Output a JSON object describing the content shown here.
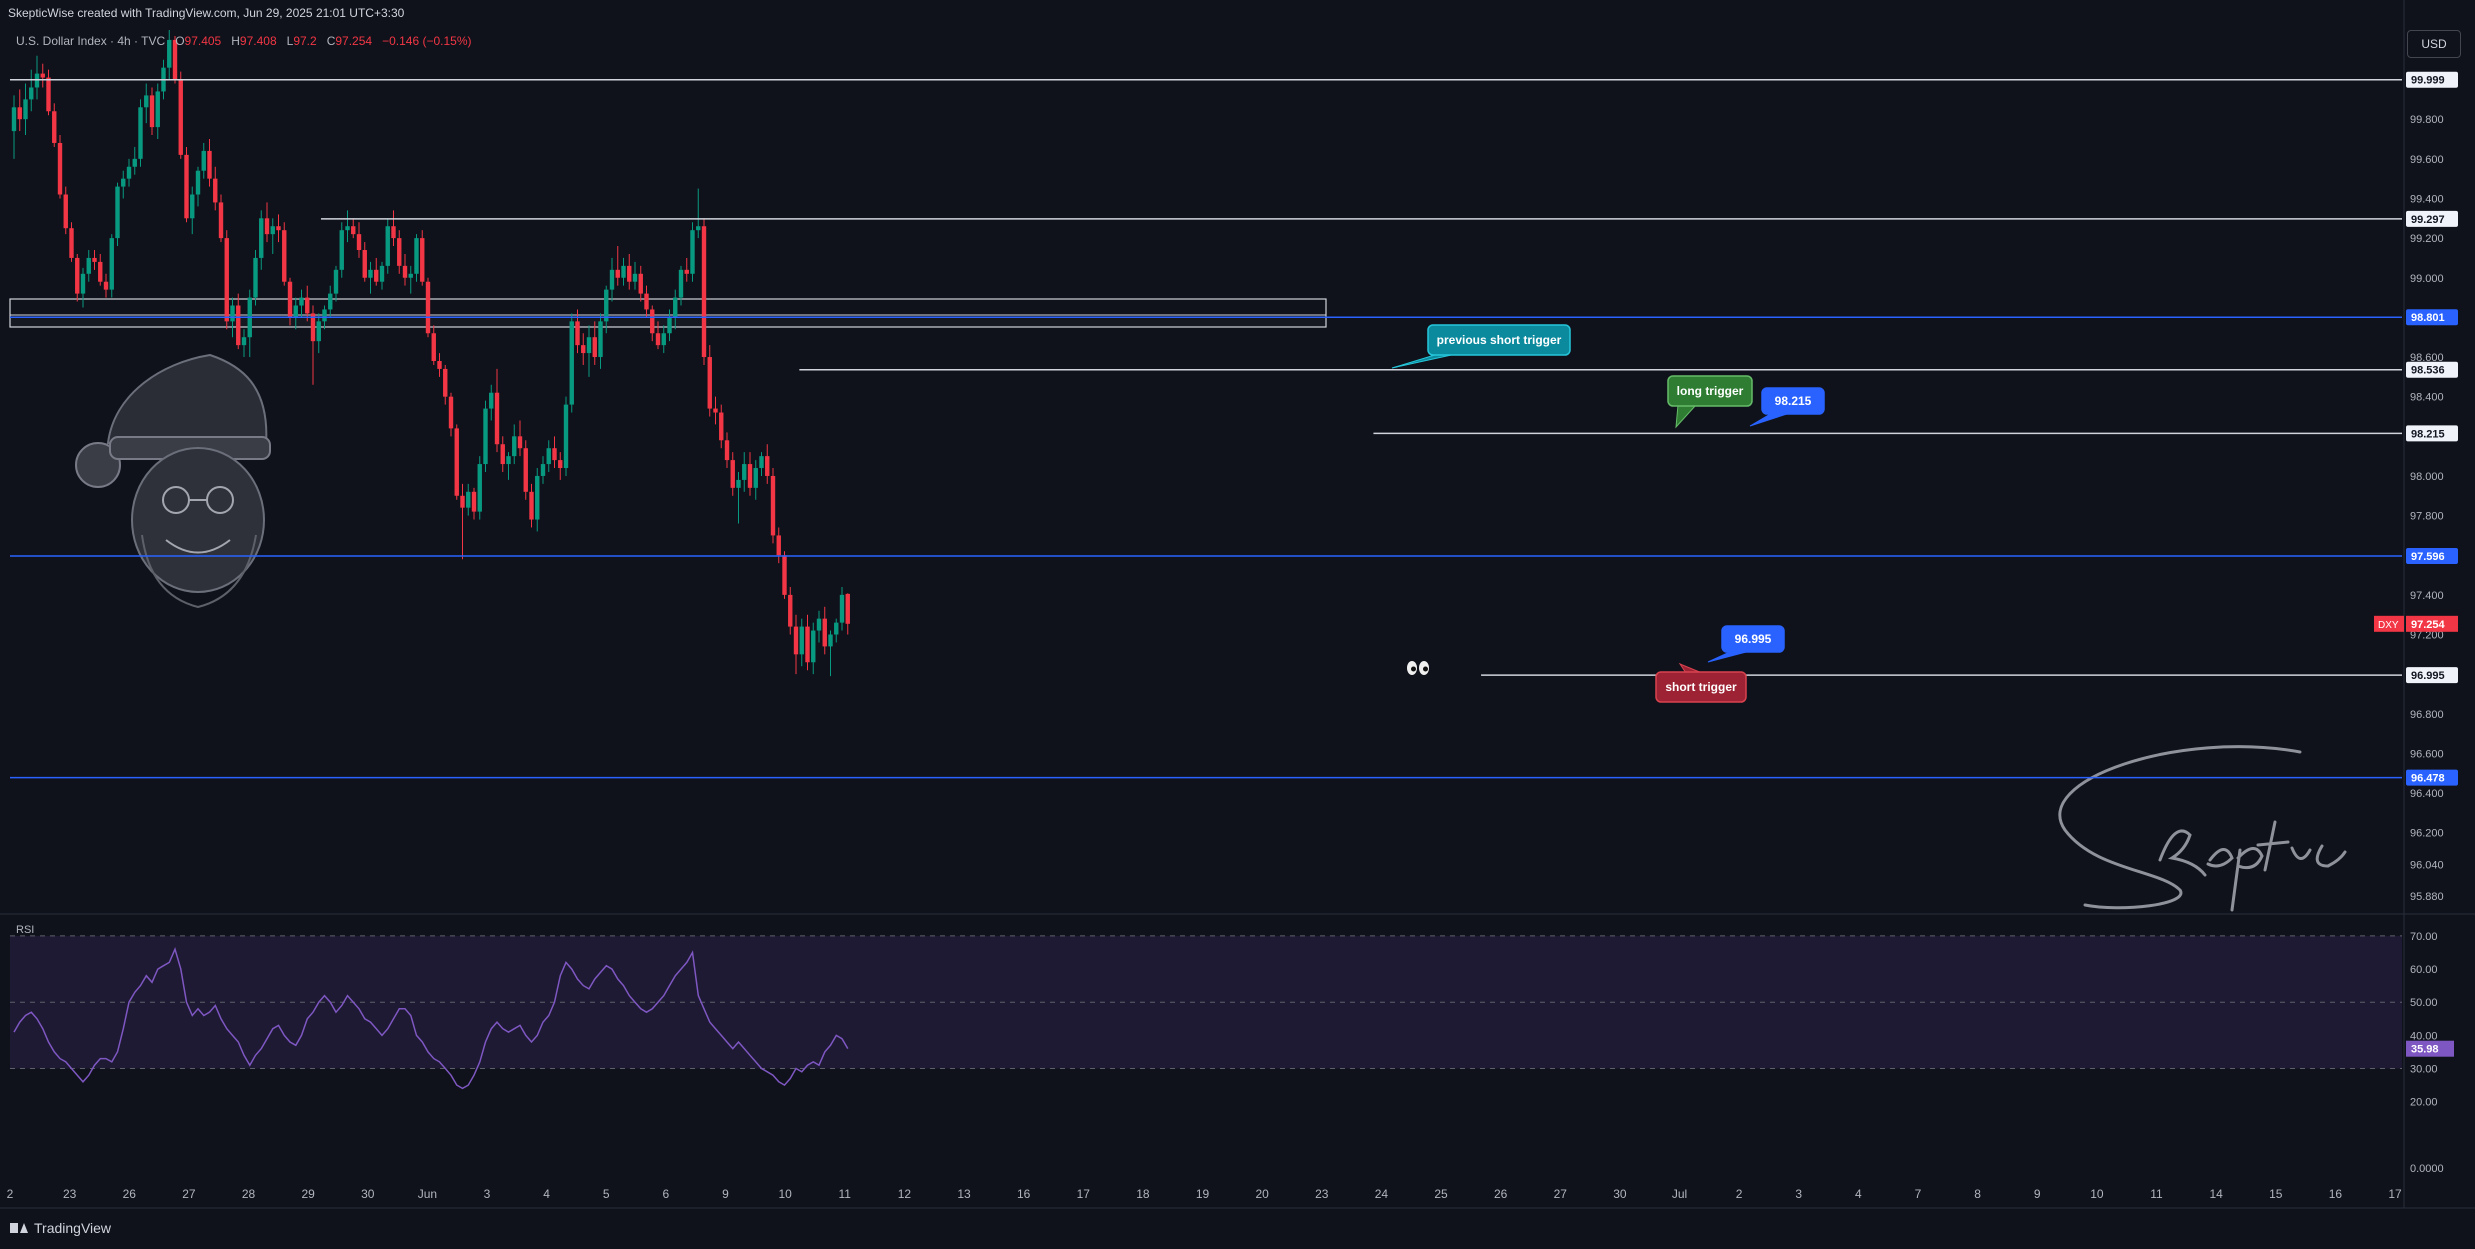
{
  "header": {
    "attribution": "SkepticWise created with TradingView.com, Jun 29, 2025 21:01 UTC+3:30"
  },
  "legend": {
    "symbol": "U.S. Dollar Index · 4h · TVC",
    "o_label": "O",
    "o": "97.405",
    "h_label": "H",
    "h": "97.408",
    "l_label": "L",
    "l": "97.2",
    "c_label": "C",
    "c": "97.254",
    "change": "−0.146 (−0.15%)"
  },
  "currency_button": "USD",
  "footer": {
    "brand": "TradingView"
  },
  "colors": {
    "background": "#0f121a",
    "up": "#089981",
    "down": "#f23645",
    "blue_line": "#2962ff",
    "white_line": "#d1d4dc",
    "rsi": "#7e57c2",
    "rsi_band": "#1e1a33"
  },
  "chart_data": {
    "type": "candlestick",
    "price_axis": {
      "ticks": [
        "99.800",
        "99.600",
        "99.400",
        "99.200",
        "99.000",
        "98.600",
        "98.400",
        "98.000",
        "97.800",
        "97.400",
        "97.200",
        "96.800",
        "96.600",
        "96.400",
        "96.200",
        "96.040",
        "95.880"
      ],
      "range": [
        95.8,
        100.25
      ]
    },
    "levels": [
      {
        "value": 99.999,
        "label": "99.999",
        "color": "white",
        "from": 0
      },
      {
        "value": 99.297,
        "label": "99.297",
        "color": "white",
        "from": 0.13
      },
      {
        "value": 98.801,
        "label": "98.801",
        "color": "blue",
        "from": 0
      },
      {
        "value": 98.536,
        "label": "98.536",
        "color": "white",
        "from": 0.33
      },
      {
        "value": 98.215,
        "label": "98.215",
        "color": "white",
        "from": 0.57
      },
      {
        "value": 97.596,
        "label": "97.596",
        "color": "blue",
        "from": 0
      },
      {
        "value": 96.995,
        "label": "96.995",
        "color": "white",
        "from": 0.615
      },
      {
        "value": 96.478,
        "label": "96.478",
        "color": "blue",
        "from": 0
      }
    ],
    "current_price": {
      "symbol": "DXY",
      "value": "97.254"
    },
    "annotations": [
      {
        "text": "previous short trigger",
        "style": "teal"
      },
      {
        "text": "long trigger",
        "style": "green"
      },
      {
        "text": "98.215",
        "style": "blue"
      },
      {
        "text": "96.995",
        "style": "blue"
      },
      {
        "text": "short trigger",
        "style": "red"
      }
    ],
    "signature": "Skeptic",
    "time_axis": [
      "2",
      "23",
      "26",
      "27",
      "28",
      "29",
      "30",
      "Jun",
      "3",
      "4",
      "5",
      "6",
      "9",
      "10",
      "11",
      "12",
      "13",
      "16",
      "17",
      "18",
      "19",
      "20",
      "23",
      "24",
      "25",
      "26",
      "27",
      "30",
      "Jul",
      "2",
      "3",
      "4",
      "7",
      "8",
      "9",
      "10",
      "11",
      "14",
      "15",
      "16",
      "17"
    ],
    "candles": [
      [
        99.74,
        99.92,
        99.6,
        99.86
      ],
      [
        99.86,
        99.95,
        99.74,
        99.8
      ],
      [
        99.8,
        99.98,
        99.72,
        99.9
      ],
      [
        99.9,
        100.05,
        99.84,
        99.96
      ],
      [
        99.96,
        100.12,
        99.9,
        100.03
      ],
      [
        100.03,
        100.08,
        99.96,
        100.01
      ],
      [
        100.01,
        100.05,
        99.82,
        99.84
      ],
      [
        99.84,
        99.88,
        99.66,
        99.68
      ],
      [
        99.68,
        99.72,
        99.4,
        99.42
      ],
      [
        99.42,
        99.46,
        99.22,
        99.25
      ],
      [
        99.25,
        99.28,
        99.08,
        99.1
      ],
      [
        99.1,
        99.12,
        98.88,
        98.92
      ],
      [
        98.92,
        99.05,
        98.85,
        99.02
      ],
      [
        99.02,
        99.14,
        98.98,
        99.1
      ],
      [
        99.1,
        99.14,
        99.04,
        99.08
      ],
      [
        99.08,
        99.12,
        98.96,
        98.98
      ],
      [
        98.98,
        99.02,
        98.9,
        98.94
      ],
      [
        98.94,
        99.22,
        98.9,
        99.2
      ],
      [
        99.2,
        99.48,
        99.16,
        99.46
      ],
      [
        99.46,
        99.54,
        99.4,
        99.5
      ],
      [
        99.5,
        99.6,
        99.46,
        99.56
      ],
      [
        99.56,
        99.66,
        99.52,
        99.6
      ],
      [
        99.6,
        99.9,
        99.56,
        99.86
      ],
      [
        99.86,
        99.98,
        99.78,
        99.92
      ],
      [
        99.92,
        99.96,
        99.72,
        99.76
      ],
      [
        99.76,
        99.98,
        99.7,
        99.94
      ],
      [
        99.94,
        100.1,
        99.9,
        100.06
      ],
      [
        100.06,
        100.25,
        100.0,
        100.2
      ],
      [
        100.2,
        100.22,
        99.98,
        100.0
      ],
      [
        100.0,
        100.04,
        99.6,
        99.62
      ],
      [
        99.62,
        99.66,
        99.28,
        99.3
      ],
      [
        99.3,
        99.46,
        99.22,
        99.42
      ],
      [
        99.42,
        99.56,
        99.36,
        99.54
      ],
      [
        99.54,
        99.68,
        99.5,
        99.64
      ],
      [
        99.64,
        99.7,
        99.46,
        99.5
      ],
      [
        99.5,
        99.56,
        99.34,
        99.38
      ],
      [
        99.38,
        99.42,
        99.18,
        99.2
      ],
      [
        99.2,
        99.24,
        98.74,
        98.78
      ],
      [
        98.78,
        98.9,
        98.7,
        98.86
      ],
      [
        98.86,
        98.92,
        98.64,
        98.66
      ],
      [
        98.66,
        98.74,
        98.6,
        98.7
      ],
      [
        98.7,
        98.94,
        98.6,
        98.9
      ],
      [
        98.9,
        99.14,
        98.86,
        99.1
      ],
      [
        99.1,
        99.34,
        99.04,
        99.3
      ],
      [
        99.3,
        99.38,
        99.18,
        99.22
      ],
      [
        99.22,
        99.3,
        99.12,
        99.26
      ],
      [
        99.26,
        99.32,
        99.18,
        99.24
      ],
      [
        99.24,
        99.28,
        98.96,
        98.98
      ],
      [
        98.98,
        99.0,
        98.76,
        98.8
      ],
      [
        98.8,
        98.9,
        98.74,
        98.86
      ],
      [
        98.86,
        98.94,
        98.8,
        98.9
      ],
      [
        98.9,
        98.96,
        98.78,
        98.82
      ],
      [
        98.82,
        98.86,
        98.46,
        98.68
      ],
      [
        98.68,
        98.82,
        98.62,
        98.78
      ],
      [
        98.78,
        98.86,
        98.74,
        98.84
      ],
      [
        98.84,
        98.96,
        98.8,
        98.92
      ],
      [
        98.92,
        99.06,
        98.88,
        99.04
      ],
      [
        99.04,
        99.28,
        99.0,
        99.24
      ],
      [
        99.24,
        99.34,
        99.18,
        99.26
      ],
      [
        99.26,
        99.3,
        99.2,
        99.22
      ],
      [
        99.22,
        99.28,
        99.1,
        99.14
      ],
      [
        99.14,
        99.18,
        98.98,
        99.0
      ],
      [
        99.0,
        99.08,
        98.92,
        99.04
      ],
      [
        99.04,
        99.1,
        98.96,
        98.98
      ],
      [
        98.98,
        99.08,
        98.94,
        99.06
      ],
      [
        99.06,
        99.3,
        99.02,
        99.26
      ],
      [
        99.26,
        99.34,
        99.16,
        99.2
      ],
      [
        99.2,
        99.24,
        99.02,
        99.06
      ],
      [
        99.06,
        99.12,
        98.96,
        99.0
      ],
      [
        99.0,
        99.06,
        98.92,
        99.02
      ],
      [
        99.02,
        99.22,
        98.98,
        99.2
      ],
      [
        99.2,
        99.24,
        98.96,
        98.98
      ],
      [
        98.98,
        99.0,
        98.7,
        98.72
      ],
      [
        98.72,
        98.76,
        98.56,
        98.58
      ],
      [
        98.58,
        98.62,
        98.5,
        98.54
      ],
      [
        98.54,
        98.56,
        98.36,
        98.4
      ],
      [
        98.4,
        98.42,
        98.2,
        98.24
      ],
      [
        98.24,
        98.26,
        97.88,
        97.9
      ],
      [
        97.9,
        97.96,
        97.58,
        97.84
      ],
      [
        97.84,
        97.96,
        97.8,
        97.92
      ],
      [
        97.92,
        97.94,
        97.78,
        97.82
      ],
      [
        97.82,
        98.1,
        97.78,
        98.06
      ],
      [
        98.06,
        98.38,
        98.02,
        98.34
      ],
      [
        98.34,
        98.46,
        98.28,
        98.42
      ],
      [
        98.42,
        98.54,
        98.12,
        98.16
      ],
      [
        98.16,
        98.2,
        98.02,
        98.06
      ],
      [
        98.06,
        98.12,
        97.98,
        98.1
      ],
      [
        98.1,
        98.26,
        98.06,
        98.2
      ],
      [
        98.2,
        98.28,
        98.1,
        98.14
      ],
      [
        98.14,
        98.18,
        97.88,
        97.92
      ],
      [
        97.92,
        97.96,
        97.74,
        97.78
      ],
      [
        97.78,
        98.04,
        97.72,
        98.0
      ],
      [
        98.0,
        98.1,
        97.96,
        98.06
      ],
      [
        98.06,
        98.18,
        98.02,
        98.14
      ],
      [
        98.14,
        98.2,
        98.04,
        98.08
      ],
      [
        98.08,
        98.12,
        97.98,
        98.04
      ],
      [
        98.04,
        98.4,
        98.0,
        98.36
      ],
      [
        98.36,
        98.82,
        98.32,
        98.78
      ],
      [
        98.78,
        98.84,
        98.62,
        98.66
      ],
      [
        98.66,
        98.72,
        98.56,
        98.62
      ],
      [
        98.62,
        98.76,
        98.5,
        98.7
      ],
      [
        98.7,
        98.78,
        98.56,
        98.6
      ],
      [
        98.6,
        98.82,
        98.54,
        98.78
      ],
      [
        98.78,
        98.96,
        98.72,
        98.94
      ],
      [
        98.94,
        99.1,
        98.88,
        99.04
      ],
      [
        99.04,
        99.16,
        98.96,
        99.0
      ],
      [
        99.0,
        99.1,
        98.96,
        99.06
      ],
      [
        99.06,
        99.12,
        98.94,
        98.98
      ],
      [
        98.98,
        99.08,
        98.94,
        99.02
      ],
      [
        99.02,
        99.06,
        98.88,
        98.92
      ],
      [
        98.92,
        98.96,
        98.8,
        98.84
      ],
      [
        98.84,
        98.86,
        98.68,
        98.72
      ],
      [
        98.72,
        98.78,
        98.64,
        98.66
      ],
      [
        98.66,
        98.76,
        98.62,
        98.72
      ],
      [
        98.72,
        98.84,
        98.68,
        98.8
      ],
      [
        98.8,
        98.94,
        98.74,
        98.9
      ],
      [
        98.9,
        99.06,
        98.86,
        99.04
      ],
      [
        99.04,
        99.1,
        98.98,
        99.02
      ],
      [
        99.02,
        99.28,
        98.98,
        99.24
      ],
      [
        99.24,
        99.45,
        99.2,
        99.26
      ],
      [
        99.26,
        99.3,
        98.56,
        98.6
      ],
      [
        98.6,
        98.66,
        98.3,
        98.34
      ],
      [
        98.34,
        98.4,
        98.26,
        98.32
      ],
      [
        98.32,
        98.36,
        98.14,
        98.18
      ],
      [
        98.18,
        98.22,
        98.04,
        98.08
      ],
      [
        98.08,
        98.12,
        97.9,
        97.94
      ],
      [
        97.94,
        98.02,
        97.76,
        97.98
      ],
      [
        97.98,
        98.12,
        97.92,
        98.06
      ],
      [
        98.06,
        98.12,
        97.9,
        97.94
      ],
      [
        97.94,
        98.08,
        97.88,
        98.04
      ],
      [
        98.04,
        98.12,
        98.0,
        98.1
      ],
      [
        98.1,
        98.16,
        97.96,
        98.0
      ],
      [
        98.0,
        98.04,
        97.66,
        97.7
      ],
      [
        97.7,
        97.74,
        97.56,
        97.6
      ],
      [
        97.6,
        97.62,
        97.38,
        97.4
      ],
      [
        97.4,
        97.44,
        97.2,
        97.24
      ],
      [
        97.24,
        97.3,
        97.0,
        97.1
      ],
      [
        97.1,
        97.28,
        97.04,
        97.24
      ],
      [
        97.24,
        97.3,
        97.02,
        97.06
      ],
      [
        97.06,
        97.26,
        97.0,
        97.22
      ],
      [
        97.22,
        97.32,
        97.16,
        97.28
      ],
      [
        97.28,
        97.34,
        97.1,
        97.14
      ],
      [
        97.14,
        97.22,
        96.99,
        97.2
      ],
      [
        97.2,
        97.28,
        97.16,
        97.26
      ],
      [
        97.26,
        97.44,
        97.22,
        97.4
      ],
      [
        97.405,
        97.408,
        97.2,
        97.254
      ]
    ],
    "rsi": {
      "label": "RSI",
      "ticks": [
        "70.00",
        "60.00",
        "50.00",
        "40.00",
        "30.00",
        "20.00",
        "0.0000"
      ],
      "range": [
        0,
        76
      ],
      "band": [
        30,
        70
      ],
      "last": "35.98",
      "values": [
        41,
        44,
        46,
        47,
        45,
        42,
        38,
        35,
        33,
        32,
        30,
        28,
        26,
        28,
        31,
        33,
        33,
        32,
        35,
        42,
        50,
        53,
        55,
        58,
        56,
        60,
        61,
        62,
        66,
        60,
        50,
        46,
        48,
        46,
        47,
        49,
        45,
        42,
        40,
        38,
        34,
        31,
        34,
        36,
        39,
        42,
        43,
        40,
        38,
        37,
        40,
        45,
        47,
        50,
        52,
        50,
        47,
        49,
        52,
        50,
        48,
        45,
        44,
        42,
        40,
        42,
        45,
        48,
        48,
        46,
        40,
        38,
        35,
        33,
        32,
        30,
        28,
        25,
        24,
        25,
        28,
        32,
        38,
        42,
        44,
        42,
        41,
        42,
        43,
        40,
        38,
        40,
        44,
        46,
        50,
        58,
        62,
        60,
        57,
        55,
        54,
        57,
        59,
        61,
        60,
        57,
        55,
        52,
        50,
        48,
        47,
        48,
        50,
        52,
        55,
        58,
        60,
        62,
        65,
        52,
        48,
        44,
        42,
        40,
        38,
        36,
        38,
        36,
        34,
        32,
        30,
        29,
        28,
        26,
        25,
        27,
        30,
        29,
        31,
        32,
        31,
        35,
        37,
        40,
        39,
        36
      ]
    }
  }
}
